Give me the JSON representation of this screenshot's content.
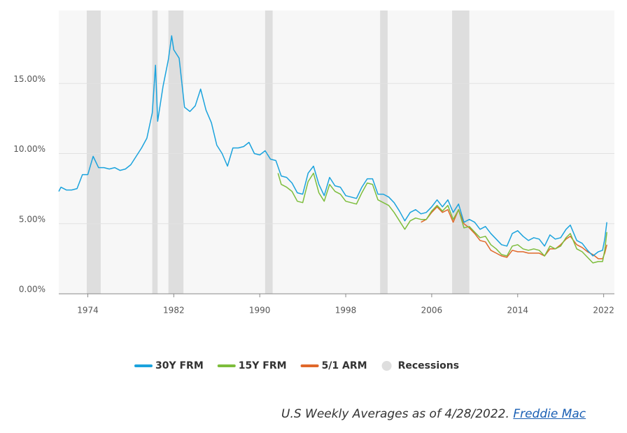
{
  "chart_data": {
    "type": "line",
    "xlim": [
      1971.3,
      2023
    ],
    "xticks": [
      1974,
      1982,
      1990,
      1998,
      2006,
      2014,
      2022
    ],
    "ylim": [
      0,
      20.2
    ],
    "yticks": [
      {
        "value": 0,
        "label": "0.00%"
      },
      {
        "value": 5,
        "label": "5.00%"
      },
      {
        "value": 10,
        "label": "10.00%"
      },
      {
        "value": 15,
        "label": "15.00%"
      }
    ],
    "grid": true,
    "series": [
      {
        "name": "30Y FRM",
        "color": "#1ba3dd",
        "x": [
          1971.3,
          1971.5,
          1972.0,
          1972.5,
          1973.0,
          1973.5,
          1974.0,
          1974.5,
          1975.0,
          1975.5,
          1976.0,
          1976.5,
          1977.0,
          1977.5,
          1978.0,
          1978.5,
          1979.0,
          1979.5,
          1980.0,
          1980.3,
          1980.5,
          1981.0,
          1981.5,
          1981.8,
          1982.0,
          1982.5,
          1983.0,
          1983.5,
          1984.0,
          1984.5,
          1985.0,
          1985.5,
          1986.0,
          1986.5,
          1987.0,
          1987.5,
          1988.0,
          1988.5,
          1989.0,
          1989.5,
          1990.0,
          1990.5,
          1991.0,
          1991.5,
          1992.0,
          1992.5,
          1993.0,
          1993.5,
          1994.0,
          1994.5,
          1995.0,
          1995.5,
          1996.0,
          1996.5,
          1997.0,
          1997.5,
          1998.0,
          1998.5,
          1999.0,
          1999.5,
          2000.0,
          2000.5,
          2001.0,
          2001.5,
          2002.0,
          2002.5,
          2003.0,
          2003.5,
          2004.0,
          2004.5,
          2005.0,
          2005.5,
          2006.0,
          2006.5,
          2007.0,
          2007.5,
          2008.0,
          2008.5,
          2009.0,
          2009.5,
          2010.0,
          2010.5,
          2011.0,
          2011.5,
          2012.0,
          2012.5,
          2013.0,
          2013.5,
          2014.0,
          2014.5,
          2015.0,
          2015.5,
          2016.0,
          2016.5,
          2017.0,
          2017.5,
          2018.0,
          2018.5,
          2018.9,
          2019.5,
          2020.0,
          2020.5,
          2021.0,
          2021.5,
          2021.9,
          2022.1,
          2022.3
        ],
        "values": [
          7.3,
          7.6,
          7.4,
          7.4,
          7.5,
          8.5,
          8.5,
          9.8,
          9.0,
          9.0,
          8.9,
          9.0,
          8.8,
          8.9,
          9.2,
          9.8,
          10.4,
          11.1,
          12.9,
          16.3,
          12.3,
          14.8,
          16.7,
          18.4,
          17.4,
          16.8,
          13.3,
          13.0,
          13.4,
          14.6,
          13.1,
          12.2,
          10.6,
          10.0,
          9.1,
          10.4,
          10.4,
          10.5,
          10.8,
          10.0,
          9.9,
          10.2,
          9.6,
          9.5,
          8.4,
          8.3,
          7.9,
          7.2,
          7.1,
          8.6,
          9.1,
          7.8,
          7.0,
          8.3,
          7.7,
          7.6,
          7.0,
          6.9,
          6.8,
          7.6,
          8.2,
          8.2,
          7.1,
          7.1,
          6.9,
          6.5,
          5.9,
          5.2,
          5.8,
          6.0,
          5.7,
          5.8,
          6.2,
          6.7,
          6.2,
          6.7,
          5.8,
          6.4,
          5.1,
          5.3,
          5.1,
          4.6,
          4.8,
          4.3,
          3.9,
          3.5,
          3.4,
          4.3,
          4.5,
          4.1,
          3.8,
          4.0,
          3.9,
          3.4,
          4.2,
          3.9,
          4.0,
          4.6,
          4.9,
          3.8,
          3.6,
          3.1,
          2.7,
          3.0,
          3.1,
          3.9,
          5.1
        ]
      },
      {
        "name": "15Y FRM",
        "color": "#7dbd3c",
        "x": [
          1991.7,
          1992.0,
          1992.5,
          1993.0,
          1993.5,
          1994.0,
          1994.5,
          1995.0,
          1995.5,
          1996.0,
          1996.5,
          1997.0,
          1997.5,
          1998.0,
          1998.5,
          1999.0,
          1999.5,
          2000.0,
          2000.5,
          2001.0,
          2001.5,
          2002.0,
          2002.5,
          2003.0,
          2003.5,
          2004.0,
          2004.5,
          2005.0,
          2005.5,
          2006.0,
          2006.5,
          2007.0,
          2007.5,
          2008.0,
          2008.5,
          2009.0,
          2009.5,
          2010.0,
          2010.5,
          2011.0,
          2011.5,
          2012.0,
          2012.5,
          2013.0,
          2013.5,
          2014.0,
          2014.5,
          2015.0,
          2015.5,
          2016.0,
          2016.5,
          2017.0,
          2017.5,
          2018.0,
          2018.5,
          2018.9,
          2019.5,
          2020.0,
          2020.5,
          2021.0,
          2021.5,
          2021.9,
          2022.1,
          2022.3
        ],
        "values": [
          8.6,
          7.8,
          7.6,
          7.3,
          6.6,
          6.5,
          8.0,
          8.6,
          7.2,
          6.6,
          7.8,
          7.3,
          7.1,
          6.6,
          6.5,
          6.4,
          7.2,
          7.9,
          7.8,
          6.7,
          6.5,
          6.3,
          5.8,
          5.2,
          4.6,
          5.2,
          5.4,
          5.3,
          5.3,
          5.9,
          6.3,
          5.9,
          6.3,
          5.3,
          6.0,
          4.7,
          4.8,
          4.4,
          4.0,
          4.1,
          3.5,
          3.2,
          2.8,
          2.7,
          3.4,
          3.5,
          3.2,
          3.1,
          3.2,
          3.1,
          2.7,
          3.4,
          3.2,
          3.4,
          4.0,
          4.3,
          3.2,
          3.0,
          2.6,
          2.2,
          2.3,
          2.3,
          3.1,
          4.4
        ]
      },
      {
        "name": "5/1 ARM",
        "color": "#e0682a",
        "x": [
          2005.0,
          2005.5,
          2006.0,
          2006.5,
          2007.0,
          2007.5,
          2008.0,
          2008.5,
          2009.0,
          2009.5,
          2010.0,
          2010.5,
          2011.0,
          2011.5,
          2012.0,
          2012.5,
          2013.0,
          2013.5,
          2014.0,
          2014.5,
          2015.0,
          2015.5,
          2016.0,
          2016.5,
          2017.0,
          2017.5,
          2018.0,
          2018.5,
          2018.9,
          2019.5,
          2020.0,
          2020.5,
          2021.0,
          2021.5,
          2021.9,
          2022.1,
          2022.3
        ],
        "values": [
          5.1,
          5.3,
          5.8,
          6.2,
          5.8,
          6.0,
          5.1,
          6.0,
          5.0,
          4.7,
          4.3,
          3.8,
          3.7,
          3.1,
          2.9,
          2.7,
          2.6,
          3.1,
          3.0,
          3.0,
          2.9,
          2.9,
          2.9,
          2.7,
          3.2,
          3.2,
          3.5,
          3.9,
          4.1,
          3.5,
          3.3,
          3.0,
          2.8,
          2.5,
          2.5,
          2.9,
          3.5
        ]
      }
    ],
    "recessions": {
      "name": "Recessions",
      "color": "#dedede",
      "periods": [
        [
          1973.9,
          1975.2
        ],
        [
          1980.0,
          1980.5
        ],
        [
          1981.5,
          1982.9
        ],
        [
          1990.5,
          1991.2
        ],
        [
          2001.2,
          2001.9
        ],
        [
          2007.9,
          2009.5
        ]
      ]
    },
    "note": "U.S Weekly Averages as of 4/28/2022.",
    "note_link": "Freddie Mac"
  }
}
